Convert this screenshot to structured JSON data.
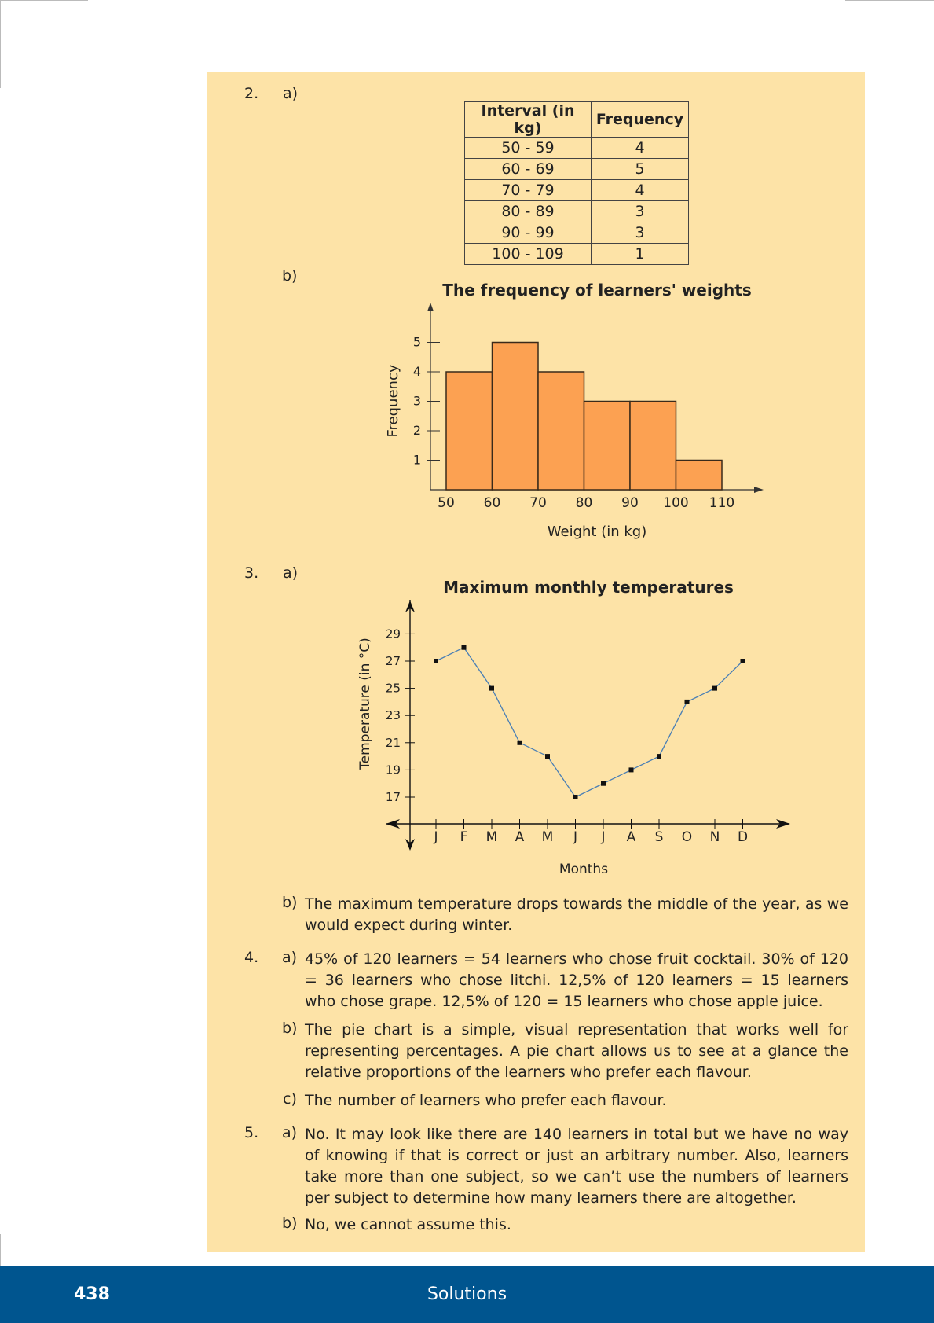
{
  "q2": {
    "num": "2.",
    "part_a": "a)",
    "part_b": "b)",
    "table": {
      "headers": [
        "Interval (in kg)",
        "Frequency"
      ],
      "rows": [
        [
          "50 - 59",
          "4"
        ],
        [
          "60 - 69",
          "5"
        ],
        [
          "70 - 79",
          "4"
        ],
        [
          "80 - 89",
          "3"
        ],
        [
          "90 - 99",
          "3"
        ],
        [
          "100 - 109",
          "1"
        ]
      ]
    },
    "chart_title": "The frequency of learners' weights"
  },
  "q3": {
    "num": "3.",
    "part_a": "a)",
    "chart_title": "Maximum monthly temperatures",
    "b_label": "b)",
    "b_text": "The maximum temperature drops towards the middle of the year, as we would expect during winter."
  },
  "q4": {
    "num": "4.",
    "a_label": "a)",
    "a_text": "45% of 120 learners = 54 learners who chose fruit cocktail. 30% of 120 = 36 learners who chose litchi. 12,5% of 120 learners = 15 learners who chose grape. 12,5% of 120 = 15 learners who chose apple juice.",
    "b_label": "b)",
    "b_text": "The pie chart is a simple, visual representation that works well for representing percentages. A pie chart allows us to see at a glance the relative proportions of the learners who prefer each flavour.",
    "c_label": "c)",
    "c_text": "The number of learners who prefer each flavour."
  },
  "q5": {
    "num": "5.",
    "a_label": "a)",
    "a_text": "No. It may look like there are 140 learners in total but we have no way of knowing if that is correct or just an arbitrary number. Also, learners take more than one subject, so we can’t use the numbers of learners per subject to determine how many learners there are altogether.",
    "b_label": "b)",
    "b_text": "No, we cannot assume this."
  },
  "footer": {
    "page_number": "438",
    "section": "Solutions",
    "color": "#00558f"
  },
  "chart_data": [
    {
      "type": "bar",
      "title": "The frequency of learners' weights",
      "xlabel": "Weight (in kg)",
      "ylabel": "Frequency",
      "bin_edges": [
        50,
        60,
        70,
        80,
        90,
        100,
        110
      ],
      "values": [
        4,
        5,
        4,
        3,
        3,
        1
      ],
      "yticks": [
        1,
        2,
        3,
        4,
        5
      ],
      "ylim": [
        0,
        5.5
      ],
      "bar_color": "#fca152"
    },
    {
      "type": "line",
      "title": "Maximum monthly temperatures",
      "xlabel": "Months",
      "ylabel": "Temperature (in °C)",
      "categories": [
        "J",
        "F",
        "M",
        "A",
        "M",
        "J",
        "J",
        "A",
        "S",
        "O",
        "N",
        "D"
      ],
      "values": [
        27,
        28,
        25,
        21,
        20,
        17,
        18,
        19,
        20,
        24,
        25,
        27
      ],
      "yticks": [
        17,
        19,
        21,
        23,
        25,
        27,
        29
      ],
      "line_color": "#4a7fb5"
    }
  ]
}
